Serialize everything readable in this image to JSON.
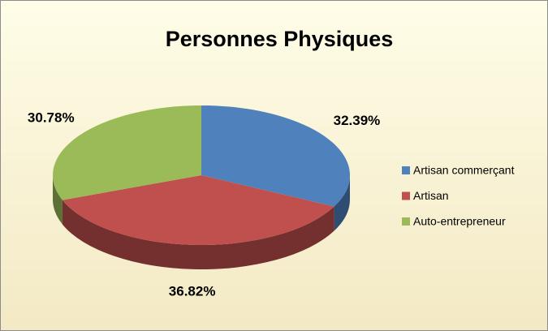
{
  "chart_data": {
    "type": "pie",
    "title": "Personnes Physiques",
    "categories": [
      "Artisan commerçant",
      "Artisan",
      "Auto-entrepreneur"
    ],
    "values": [
      32.39,
      36.82,
      30.78
    ],
    "value_labels": [
      "32.39%",
      "36.82%",
      "30.78%"
    ],
    "colors": [
      "#4f81bd",
      "#c0504d",
      "#9bbb59"
    ],
    "legend": "right"
  }
}
